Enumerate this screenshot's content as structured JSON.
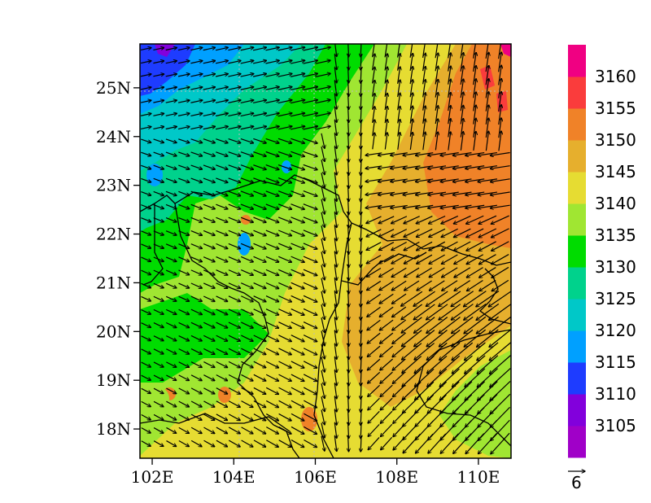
{
  "map": {
    "lon_range": [
      101.7,
      110.8
    ],
    "lat_range": [
      17.4,
      25.9
    ],
    "x_ticks": [
      {
        "value": 102,
        "label": "102E"
      },
      {
        "value": 104,
        "label": "104E"
      },
      {
        "value": 106,
        "label": "106E"
      },
      {
        "value": 108,
        "label": "108E"
      },
      {
        "value": 110,
        "label": "110E"
      }
    ],
    "y_ticks": [
      {
        "value": 18,
        "label": "18N"
      },
      {
        "value": 19,
        "label": "19N"
      },
      {
        "value": 20,
        "label": "20N"
      },
      {
        "value": 21,
        "label": "21N"
      },
      {
        "value": 22,
        "label": "22N"
      },
      {
        "value": 23,
        "label": "23N"
      },
      {
        "value": 24,
        "label": "24N"
      },
      {
        "value": 25,
        "label": "25N"
      }
    ],
    "grid": "dotted",
    "layers": [
      "filled-contours",
      "wind-vectors",
      "coastlines-and-borders"
    ]
  },
  "colorbar": {
    "levels": [
      {
        "label": "",
        "color": "#a000c8"
      },
      {
        "label": "3105",
        "color": "#8200dc"
      },
      {
        "label": "3110",
        "color": "#1e3cff"
      },
      {
        "label": "3115",
        "color": "#00a0ff"
      },
      {
        "label": "3120",
        "color": "#00c8c8"
      },
      {
        "label": "3125",
        "color": "#00d28c"
      },
      {
        "label": "3130",
        "color": "#00dc00"
      },
      {
        "label": "3135",
        "color": "#a0e632"
      },
      {
        "label": "3140",
        "color": "#e6dc32"
      },
      {
        "label": "3145",
        "color": "#e6af2d"
      },
      {
        "label": "3150",
        "color": "#f08228"
      },
      {
        "label": "3155",
        "color": "#fa3c3c"
      },
      {
        "label": "3160",
        "color": "#f00082"
      }
    ]
  },
  "reference_vector": {
    "label": "6"
  }
}
